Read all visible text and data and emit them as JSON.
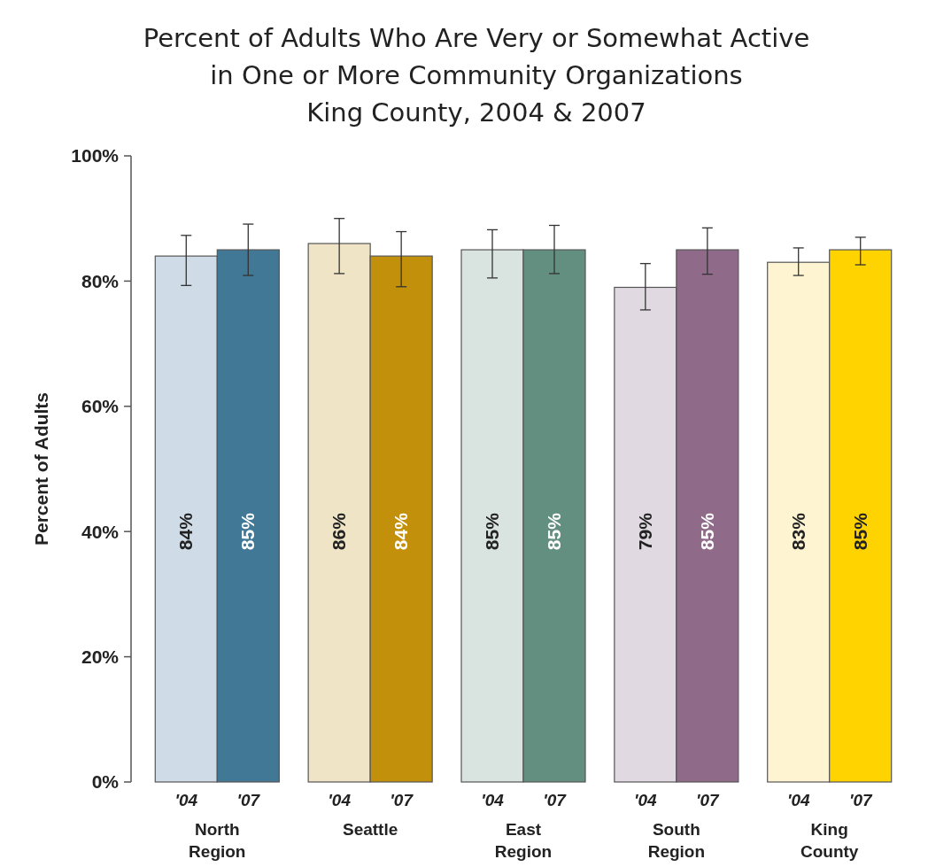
{
  "chart_data": {
    "type": "bar",
    "title": "Percent of Adults Who Are Very or Somewhat Active\nin One or More Community Organizations\nKing County, 2004 & 2007",
    "ylabel": "Percent of Adults",
    "categories": [
      "North Region",
      "Seattle",
      "East Region",
      "South Region",
      "King County"
    ],
    "series": [
      {
        "name": "'04",
        "colors": [
          "#cfdce7",
          "#efe4c6",
          "#d9e4e0",
          "#e1d9e1",
          "#fff4d2"
        ],
        "values": [
          84,
          86,
          85,
          79,
          83
        ],
        "value_labels": [
          "84%",
          "86%",
          "85%",
          "79%",
          "83%"
        ],
        "errors": [
          [
            79.3,
            87.3
          ],
          [
            81.2,
            90.0
          ],
          [
            80.5,
            88.2
          ],
          [
            75.4,
            82.8
          ],
          [
            80.9,
            85.3
          ]
        ]
      },
      {
        "name": "'07",
        "colors": [
          "#417896",
          "#c2900a",
          "#628f7f",
          "#8f6a89",
          "#ffd300"
        ],
        "values": [
          85,
          84,
          85,
          85,
          85
        ],
        "value_labels": [
          "85%",
          "84%",
          "85%",
          "85%",
          "85%"
        ],
        "errors": [
          [
            80.9,
            89.1
          ],
          [
            79.1,
            87.9
          ],
          [
            81.2,
            88.9
          ],
          [
            81.1,
            88.5
          ],
          [
            82.6,
            87.0
          ]
        ]
      }
    ],
    "ylim": [
      0,
      100
    ],
    "yticks": [
      {
        "value": 0,
        "label": "0%"
      },
      {
        "value": 20,
        "label": "20%"
      },
      {
        "value": 40,
        "label": "40%"
      },
      {
        "value": 60,
        "label": "60%"
      },
      {
        "value": 80,
        "label": "80%"
      },
      {
        "value": 100,
        "label": "100%"
      }
    ],
    "grid": false
  }
}
